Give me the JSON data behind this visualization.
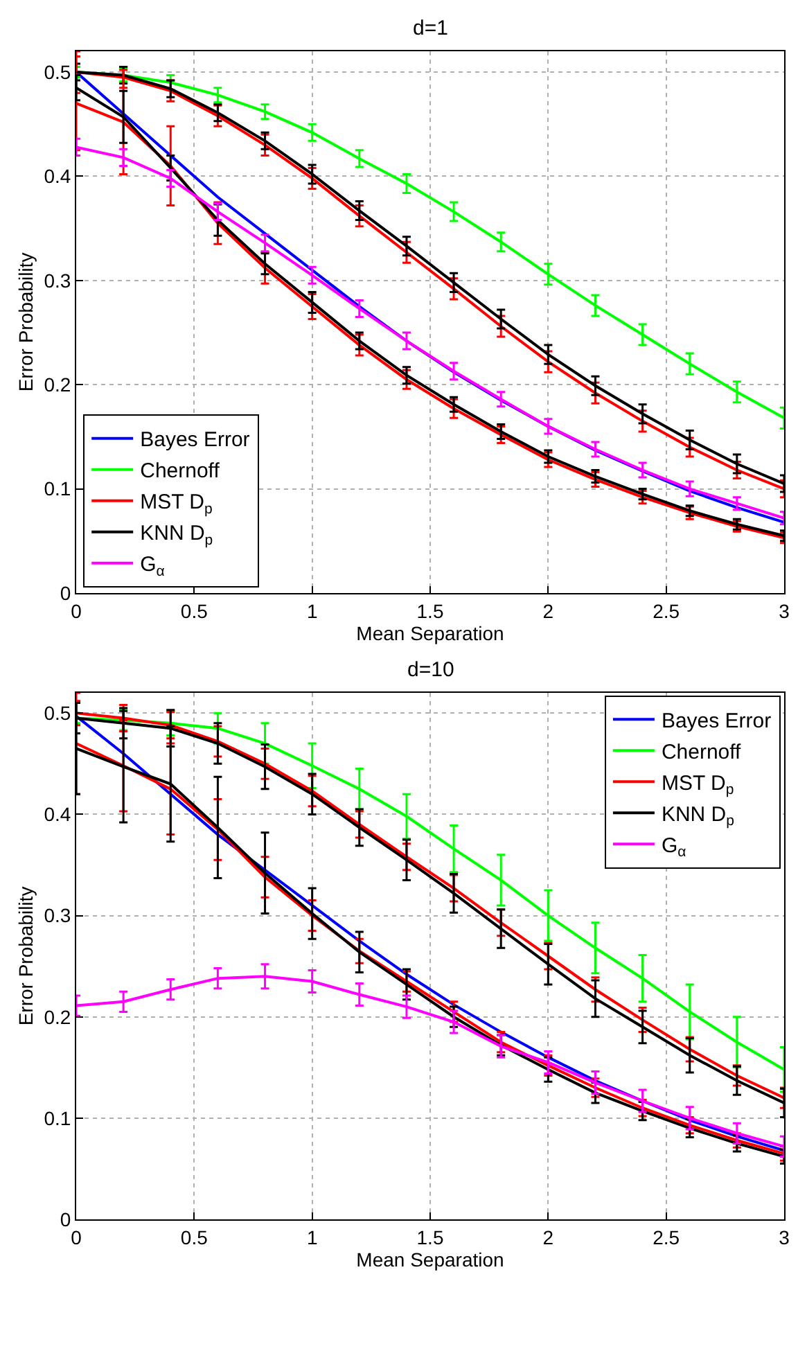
{
  "chart_data": [
    {
      "type": "line",
      "title": "d=1",
      "xlabel": "Mean Separation",
      "ylabel": "Error Probability",
      "x": [
        0,
        0.2,
        0.4,
        0.6,
        0.8,
        1.0,
        1.2,
        1.4,
        1.6,
        1.8,
        2.0,
        2.2,
        2.4,
        2.6,
        2.8,
        3.0
      ],
      "xlim": [
        0,
        3
      ],
      "xticks": [
        0,
        0.5,
        1,
        1.5,
        2,
        2.5,
        3
      ],
      "ylim": [
        0,
        0.52
      ],
      "yticks": [
        0,
        0.1,
        0.2,
        0.3,
        0.4,
        0.5
      ],
      "grid": true,
      "legend": "bottom left",
      "line_style": "solid",
      "series": [
        {
          "name": "Bayes Error",
          "color": "#0000ff",
          "values": [
            0.5,
            0.46,
            0.42,
            0.38,
            0.345,
            0.31,
            0.275,
            0.242,
            0.212,
            0.185,
            0.16,
            0.137,
            0.117,
            0.098,
            0.082,
            0.068
          ]
        },
        {
          "name": "Chernoff",
          "color": "#00ff00",
          "values": [
            0.5,
            0.497,
            0.49,
            0.478,
            0.462,
            0.442,
            0.417,
            0.393,
            0.366,
            0.337,
            0.306,
            0.276,
            0.248,
            0.22,
            0.193,
            0.168
          ],
          "errors": [
            0.005,
            0.006,
            0.007,
            0.007,
            0.007,
            0.008,
            0.008,
            0.009,
            0.009,
            0.009,
            0.01,
            0.01,
            0.01,
            0.01,
            0.01,
            0.01
          ]
        },
        {
          "name": "MST D$_{p}$",
          "color": "#ff0000",
          "values": [
            0.5,
            0.495,
            0.482,
            0.458,
            0.43,
            0.398,
            0.362,
            0.327,
            0.292,
            0.256,
            0.222,
            0.192,
            0.165,
            0.14,
            0.118,
            0.1
          ],
          "errors": [
            0.02,
            0.01,
            0.01,
            0.01,
            0.01,
            0.01,
            0.01,
            0.01,
            0.01,
            0.01,
            0.01,
            0.01,
            0.01,
            0.009,
            0.008,
            0.008
          ]
        },
        {
          "name": "KNN D$_{p}$",
          "color": "#000000",
          "values": [
            0.5,
            0.497,
            0.484,
            0.461,
            0.434,
            0.402,
            0.367,
            0.333,
            0.298,
            0.263,
            0.229,
            0.199,
            0.172,
            0.147,
            0.124,
            0.105
          ],
          "errors": [
            0.008,
            0.008,
            0.008,
            0.008,
            0.008,
            0.009,
            0.009,
            0.009,
            0.009,
            0.009,
            0.009,
            0.009,
            0.009,
            0.009,
            0.009,
            0.008
          ]
        },
        {
          "color": "#ff0000",
          "values": [
            0.47,
            0.452,
            0.41,
            0.355,
            0.312,
            0.275,
            0.238,
            0.205,
            0.177,
            0.152,
            0.128,
            0.109,
            0.092,
            0.077,
            0.064,
            0.053
          ],
          "errors": [
            0.045,
            0.05,
            0.038,
            0.02,
            0.015,
            0.012,
            0.01,
            0.009,
            0.009,
            0.008,
            0.007,
            0.007,
            0.006,
            0.006,
            0.005,
            0.005
          ]
        },
        {
          "color": "#000000",
          "values": [
            0.485,
            0.457,
            0.408,
            0.358,
            0.316,
            0.279,
            0.242,
            0.209,
            0.181,
            0.155,
            0.131,
            0.112,
            0.095,
            0.079,
            0.066,
            0.055
          ],
          "errors": [
            0.012,
            0.025,
            0.012,
            0.015,
            0.01,
            0.01,
            0.008,
            0.008,
            0.007,
            0.007,
            0.006,
            0.006,
            0.005,
            0.005,
            0.005,
            0.005
          ]
        },
        {
          "name": "G$_{α}$",
          "color": "#ff00ff",
          "values": [
            0.428,
            0.418,
            0.398,
            0.366,
            0.336,
            0.305,
            0.273,
            0.242,
            0.213,
            0.186,
            0.16,
            0.138,
            0.118,
            0.1,
            0.086,
            0.072
          ],
          "errors": [
            0.008,
            0.008,
            0.008,
            0.008,
            0.008,
            0.008,
            0.008,
            0.008,
            0.008,
            0.007,
            0.007,
            0.007,
            0.007,
            0.007,
            0.006,
            0.006
          ]
        }
      ]
    },
    {
      "type": "line",
      "title": "d=10",
      "xlabel": "Mean Separation",
      "ylabel": "Error Probability",
      "x": [
        0,
        0.2,
        0.4,
        0.6,
        0.8,
        1.0,
        1.2,
        1.4,
        1.6,
        1.8,
        2.0,
        2.2,
        2.4,
        2.6,
        2.8,
        3.0
      ],
      "xlim": [
        0,
        3
      ],
      "xticks": [
        0,
        0.5,
        1,
        1.5,
        2,
        2.5,
        3
      ],
      "ylim": [
        0,
        0.52
      ],
      "yticks": [
        0,
        0.1,
        0.2,
        0.3,
        0.4,
        0.5
      ],
      "grid": true,
      "legend": "top right",
      "line_style": "solid",
      "series": [
        {
          "name": "Bayes Error",
          "color": "#0000ff",
          "values": [
            0.497,
            0.46,
            0.42,
            0.38,
            0.345,
            0.31,
            0.275,
            0.242,
            0.212,
            0.185,
            0.16,
            0.137,
            0.117,
            0.098,
            0.082,
            0.068
          ]
        },
        {
          "name": "Chernoff",
          "color": "#00ff00",
          "values": [
            0.495,
            0.493,
            0.49,
            0.485,
            0.47,
            0.448,
            0.425,
            0.398,
            0.366,
            0.335,
            0.3,
            0.268,
            0.238,
            0.205,
            0.175,
            0.148
          ],
          "errors": [
            0.005,
            0.01,
            0.012,
            0.015,
            0.02,
            0.022,
            0.02,
            0.022,
            0.023,
            0.025,
            0.025,
            0.025,
            0.023,
            0.027,
            0.025,
            0.022
          ]
        },
        {
          "name": "MST D$_{p}$",
          "color": "#ff0000",
          "values": [
            0.5,
            0.495,
            0.488,
            0.472,
            0.45,
            0.423,
            0.39,
            0.358,
            0.327,
            0.293,
            0.26,
            0.227,
            0.197,
            0.168,
            0.142,
            0.12
          ],
          "errors": [
            0.012,
            0.013,
            0.013,
            0.015,
            0.015,
            0.015,
            0.013,
            0.013,
            0.013,
            0.013,
            0.013,
            0.012,
            0.012,
            0.012,
            0.01,
            0.01
          ]
        },
        {
          "name": "KNN D$_{p}$",
          "color": "#000000",
          "values": [
            0.495,
            0.49,
            0.485,
            0.47,
            0.447,
            0.42,
            0.387,
            0.355,
            0.322,
            0.287,
            0.252,
            0.218,
            0.19,
            0.162,
            0.137,
            0.115
          ],
          "errors": [
            0.015,
            0.015,
            0.018,
            0.02,
            0.022,
            0.02,
            0.018,
            0.02,
            0.019,
            0.019,
            0.02,
            0.018,
            0.016,
            0.017,
            0.014,
            0.014
          ]
        },
        {
          "color": "#ff0000",
          "values": [
            0.47,
            0.448,
            0.425,
            0.385,
            0.338,
            0.3,
            0.265,
            0.235,
            0.205,
            0.175,
            0.152,
            0.13,
            0.11,
            0.093,
            0.078,
            0.065
          ],
          "errors": [
            0.05,
            0.045,
            0.045,
            0.03,
            0.02,
            0.015,
            0.012,
            0.01,
            0.01,
            0.01,
            0.01,
            0.009,
            0.008,
            0.008,
            0.007,
            0.007
          ]
        },
        {
          "color": "#000000",
          "values": [
            0.465,
            0.447,
            0.43,
            0.387,
            0.342,
            0.302,
            0.264,
            0.232,
            0.2,
            0.172,
            0.148,
            0.125,
            0.107,
            0.09,
            0.075,
            0.062
          ],
          "errors": [
            0.045,
            0.055,
            0.057,
            0.05,
            0.04,
            0.025,
            0.02,
            0.015,
            0.01,
            0.01,
            0.012,
            0.01,
            0.009,
            0.009,
            0.008,
            0.007
          ]
        },
        {
          "name": "G$_{α}$",
          "color": "#ff00ff",
          "values": [
            0.211,
            0.215,
            0.227,
            0.238,
            0.24,
            0.235,
            0.222,
            0.21,
            0.195,
            0.171,
            0.155,
            0.135,
            0.117,
            0.1,
            0.085,
            0.072
          ],
          "errors": [
            0.01,
            0.01,
            0.01,
            0.01,
            0.012,
            0.011,
            0.011,
            0.011,
            0.011,
            0.011,
            0.011,
            0.011,
            0.011,
            0.011,
            0.01,
            0.01
          ]
        }
      ]
    }
  ]
}
